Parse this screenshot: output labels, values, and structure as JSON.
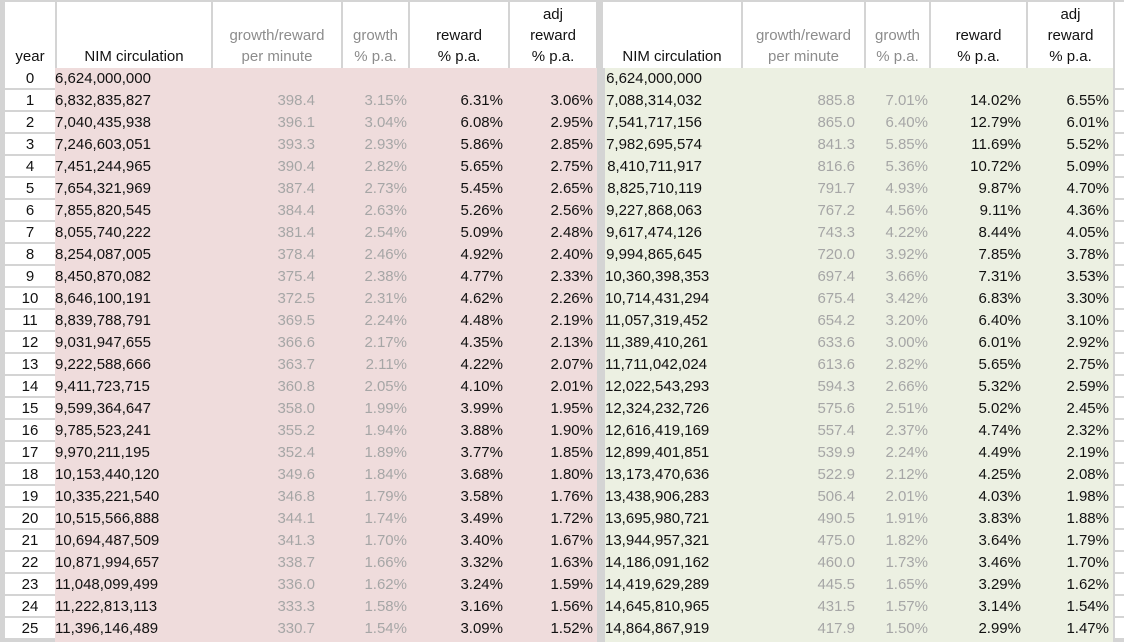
{
  "headers": {
    "year": "year",
    "left": {
      "circulation": "NIM circulation",
      "per_minute": "growth/reward\nper minute",
      "growth": "growth\n% p.a.",
      "reward": "reward\n% p.a.",
      "adj_reward": "adj\nreward\n% p.a."
    },
    "right": {
      "circulation": "NIM circulation",
      "per_minute": "growth/reward\nper minute",
      "growth": "growth\n% p.a.",
      "reward": "reward\n% p.a.",
      "adj_reward": "adj\nreward\n% p.a."
    }
  },
  "colors": {
    "left_band": "#efdcdc",
    "right_band": "#ecf0e2",
    "muted_text": "#a6a6a6"
  },
  "rows": [
    [
      "0",
      "6,624,000,000",
      "",
      "",
      "",
      "",
      "6,624,000,000",
      "",
      "",
      "",
      ""
    ],
    [
      "1",
      "6,832,835,827",
      "398.4",
      "3.15%",
      "6.31%",
      "3.06%",
      "7,088,314,032",
      "885.8",
      "7.01%",
      "14.02%",
      "6.55%"
    ],
    [
      "2",
      "7,040,435,938",
      "396.1",
      "3.04%",
      "6.08%",
      "2.95%",
      "7,541,717,156",
      "865.0",
      "6.40%",
      "12.79%",
      "6.01%"
    ],
    [
      "3",
      "7,246,603,051",
      "393.3",
      "2.93%",
      "5.86%",
      "2.85%",
      "7,982,695,574",
      "841.3",
      "5.85%",
      "11.69%",
      "5.52%"
    ],
    [
      "4",
      "7,451,244,965",
      "390.4",
      "2.82%",
      "5.65%",
      "2.75%",
      "8,410,711,917",
      "816.6",
      "5.36%",
      "10.72%",
      "5.09%"
    ],
    [
      "5",
      "7,654,321,969",
      "387.4",
      "2.73%",
      "5.45%",
      "2.65%",
      "8,825,710,119",
      "791.7",
      "4.93%",
      "9.87%",
      "4.70%"
    ],
    [
      "6",
      "7,855,820,545",
      "384.4",
      "2.63%",
      "5.26%",
      "2.56%",
      "9,227,868,063",
      "767.2",
      "4.56%",
      "9.11%",
      "4.36%"
    ],
    [
      "7",
      "8,055,740,222",
      "381.4",
      "2.54%",
      "5.09%",
      "2.48%",
      "9,617,474,126",
      "743.3",
      "4.22%",
      "8.44%",
      "4.05%"
    ],
    [
      "8",
      "8,254,087,005",
      "378.4",
      "2.46%",
      "4.92%",
      "2.40%",
      "9,994,865,645",
      "720.0",
      "3.92%",
      "7.85%",
      "3.78%"
    ],
    [
      "9",
      "8,450,870,082",
      "375.4",
      "2.38%",
      "4.77%",
      "2.33%",
      "10,360,398,353",
      "697.4",
      "3.66%",
      "7.31%",
      "3.53%"
    ],
    [
      "10",
      "8,646,100,191",
      "372.5",
      "2.31%",
      "4.62%",
      "2.26%",
      "10,714,431,294",
      "675.4",
      "3.42%",
      "6.83%",
      "3.30%"
    ],
    [
      "11",
      "8,839,788,791",
      "369.5",
      "2.24%",
      "4.48%",
      "2.19%",
      "11,057,319,452",
      "654.2",
      "3.20%",
      "6.40%",
      "3.10%"
    ],
    [
      "12",
      "9,031,947,655",
      "366.6",
      "2.17%",
      "4.35%",
      "2.13%",
      "11,389,410,261",
      "633.6",
      "3.00%",
      "6.01%",
      "2.92%"
    ],
    [
      "13",
      "9,222,588,666",
      "363.7",
      "2.11%",
      "4.22%",
      "2.07%",
      "11,711,042,024",
      "613.6",
      "2.82%",
      "5.65%",
      "2.75%"
    ],
    [
      "14",
      "9,411,723,715",
      "360.8",
      "2.05%",
      "4.10%",
      "2.01%",
      "12,022,543,293",
      "594.3",
      "2.66%",
      "5.32%",
      "2.59%"
    ],
    [
      "15",
      "9,599,364,647",
      "358.0",
      "1.99%",
      "3.99%",
      "1.95%",
      "12,324,232,726",
      "575.6",
      "2.51%",
      "5.02%",
      "2.45%"
    ],
    [
      "16",
      "9,785,523,241",
      "355.2",
      "1.94%",
      "3.88%",
      "1.90%",
      "12,616,419,169",
      "557.4",
      "2.37%",
      "4.74%",
      "2.32%"
    ],
    [
      "17",
      "9,970,211,195",
      "352.4",
      "1.89%",
      "3.77%",
      "1.85%",
      "12,899,401,851",
      "539.9",
      "2.24%",
      "4.49%",
      "2.19%"
    ],
    [
      "18",
      "10,153,440,120",
      "349.6",
      "1.84%",
      "3.68%",
      "1.80%",
      "13,173,470,636",
      "522.9",
      "2.12%",
      "4.25%",
      "2.08%"
    ],
    [
      "19",
      "10,335,221,540",
      "346.8",
      "1.79%",
      "3.58%",
      "1.76%",
      "13,438,906,283",
      "506.4",
      "2.01%",
      "4.03%",
      "1.98%"
    ],
    [
      "20",
      "10,515,566,888",
      "344.1",
      "1.74%",
      "3.49%",
      "1.72%",
      "13,695,980,721",
      "490.5",
      "1.91%",
      "3.83%",
      "1.88%"
    ],
    [
      "21",
      "10,694,487,509",
      "341.3",
      "1.70%",
      "3.40%",
      "1.67%",
      "13,944,957,321",
      "475.0",
      "1.82%",
      "3.64%",
      "1.79%"
    ],
    [
      "22",
      "10,871,994,657",
      "338.7",
      "1.66%",
      "3.32%",
      "1.63%",
      "14,186,091,162",
      "460.0",
      "1.73%",
      "3.46%",
      "1.70%"
    ],
    [
      "23",
      "11,048,099,499",
      "336.0",
      "1.62%",
      "3.24%",
      "1.59%",
      "14,419,629,289",
      "445.5",
      "1.65%",
      "3.29%",
      "1.62%"
    ],
    [
      "24",
      "11,222,813,113",
      "333.3",
      "1.58%",
      "3.16%",
      "1.56%",
      "14,645,810,965",
      "431.5",
      "1.57%",
      "3.14%",
      "1.54%"
    ],
    [
      "25",
      "11,396,146,489",
      "330.7",
      "1.54%",
      "3.09%",
      "1.52%",
      "14,864,867,919",
      "417.9",
      "1.50%",
      "2.99%",
      "1.47%"
    ]
  ]
}
